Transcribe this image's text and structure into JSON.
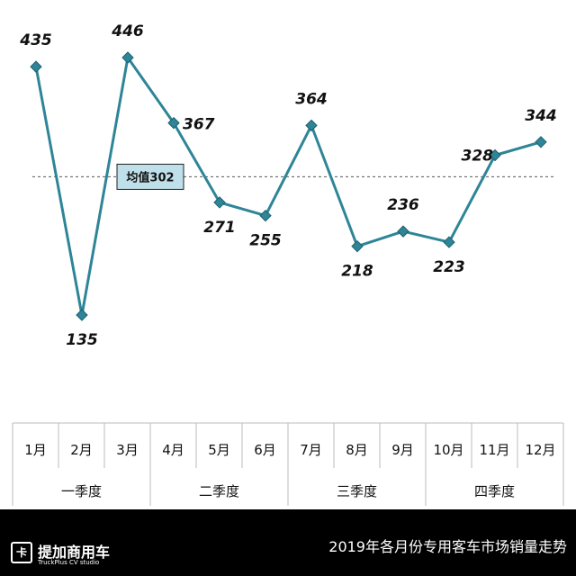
{
  "chart_data": {
    "type": "line",
    "categories": [
      "1月",
      "2月",
      "3月",
      "4月",
      "5月",
      "6月",
      "7月",
      "8月",
      "9月",
      "10月",
      "11月",
      "12月"
    ],
    "values": [
      435,
      135,
      446,
      367,
      271,
      255,
      364,
      218,
      236,
      223,
      328,
      344
    ],
    "quarters": [
      "一季度",
      "二季度",
      "三季度",
      "四季度"
    ],
    "average": {
      "label": "均值302",
      "value": 302
    },
    "grid": false,
    "legend": "none",
    "colors": {
      "line": "#2e8597",
      "marker": "#2e8597",
      "average_box": "#bfe0ea",
      "average_line": "#555555"
    }
  },
  "footer": {
    "logo_mark": "卡",
    "logo_name": "提加商用车",
    "logo_sub": "TruckPlus CV studio",
    "title": "2019年各月份专用客车市场销量走势"
  }
}
